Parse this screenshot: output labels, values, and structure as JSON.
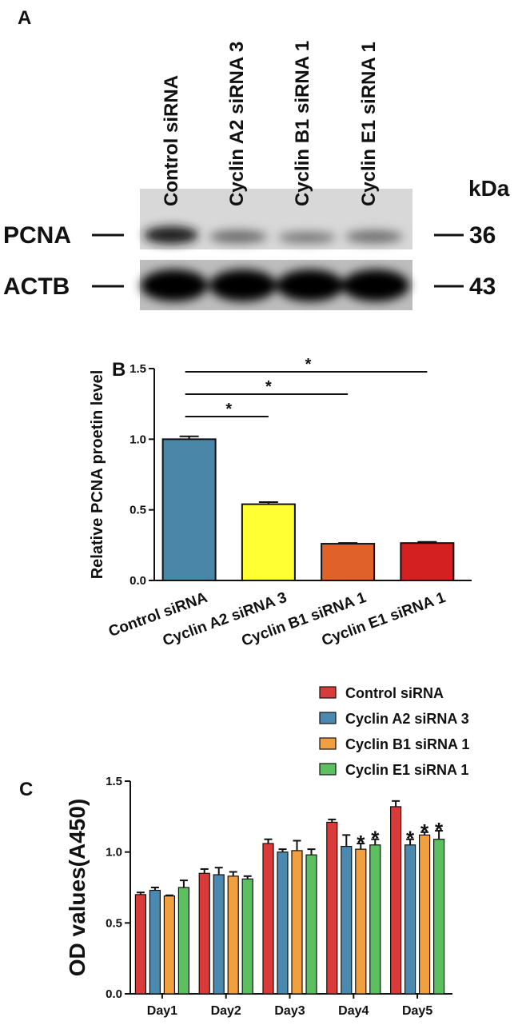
{
  "blot": {
    "panel_label": "A",
    "lanes": [
      "Control siRNA",
      "Cyclin A2 siRNA 3",
      "Cyclin B1 siRNA 1",
      "Cyclin E1 siRNA 1"
    ],
    "unit_label": "kDa",
    "bands": [
      {
        "name": "PCNA",
        "size": "36"
      },
      {
        "name": "ACTB",
        "size": "43"
      }
    ]
  },
  "chart_data": [
    {
      "type": "bar",
      "panel_label": "B",
      "y_label": "Relative PCNA proetin  level",
      "categories": [
        "Control siRNA",
        "Cyclin A2 siRNA 3",
        "Cyclin B1 siRNA 1",
        "Cyclin E1 siRNA 1"
      ],
      "values": [
        1.0,
        0.54,
        0.26,
        0.265
      ],
      "errors": [
        0.02,
        0.015,
        0.005,
        0.008
      ],
      "colors": [
        "#4a86a8",
        "#ffff33",
        "#e0622a",
        "#d42020"
      ],
      "ylim": [
        0,
        1.5
      ],
      "yticks": [
        {
          "value": 0,
          "label": "0.0"
        },
        0.5,
        {
          "value": 1,
          "label": "1.0"
        },
        1.5
      ],
      "significance": [
        {
          "label": "*",
          "between": [
            "Control siRNA",
            "Cyclin A2 siRNA 3"
          ]
        },
        {
          "label": "*",
          "between": [
            "Control siRNA",
            "Cyclin B1 siRNA 1"
          ]
        },
        {
          "label": "*",
          "between": [
            "Control siRNA",
            "Cyclin E1 siRNA 1"
          ]
        }
      ]
    },
    {
      "type": "grouped_bar",
      "panel_label": "C",
      "y_label": "OD values(A450)",
      "categories": [
        "Day1",
        "Day2",
        "Day3",
        "Day4",
        "Day5"
      ],
      "series": [
        {
          "name": "Control siRNA",
          "color": "#d93a3a",
          "values": [
            0.7,
            0.85,
            1.06,
            1.21,
            1.32
          ],
          "errors": [
            0.015,
            0.03,
            0.03,
            0.02,
            0.04
          ]
        },
        {
          "name": "Cyclin A2 siRNA 3",
          "color": "#4a8ab0",
          "values": [
            0.73,
            0.84,
            1.0,
            1.04,
            1.05
          ],
          "errors": [
            0.02,
            0.05,
            0.02,
            0.08,
            0.04
          ]
        },
        {
          "name": "Cyclin B1 siRNA 1",
          "color": "#f0a040",
          "values": [
            0.69,
            0.83,
            1.01,
            1.02,
            1.12
          ],
          "errors": [
            0.005,
            0.03,
            0.07,
            0.04,
            0.02
          ]
        },
        {
          "name": "Cyclin E1 siRNA 1",
          "color": "#5cc060",
          "values": [
            0.75,
            0.81,
            0.98,
            1.05,
            1.09
          ],
          "errors": [
            0.05,
            0.02,
            0.04,
            0.04,
            0.06
          ]
        }
      ],
      "ylim": [
        0,
        1.5
      ],
      "yticks": [
        {
          "value": 0,
          "label": "0.0"
        },
        0.5,
        {
          "value": 1,
          "label": "1.0"
        },
        1.5
      ],
      "legend": "top-right",
      "annotations": [
        {
          "label": "*",
          "category": "Day4",
          "series": "Cyclin B1 siRNA 1"
        },
        {
          "label": "*",
          "category": "Day4",
          "series": "Cyclin E1 siRNA 1"
        },
        {
          "label": "*",
          "category": "Day5",
          "series": "Cyclin A2 siRNA 3"
        },
        {
          "label": "*",
          "category": "Day5",
          "series": "Cyclin B1 siRNA 1"
        },
        {
          "label": "*",
          "category": "Day5",
          "series": "Cyclin E1 siRNA 1"
        }
      ]
    }
  ]
}
